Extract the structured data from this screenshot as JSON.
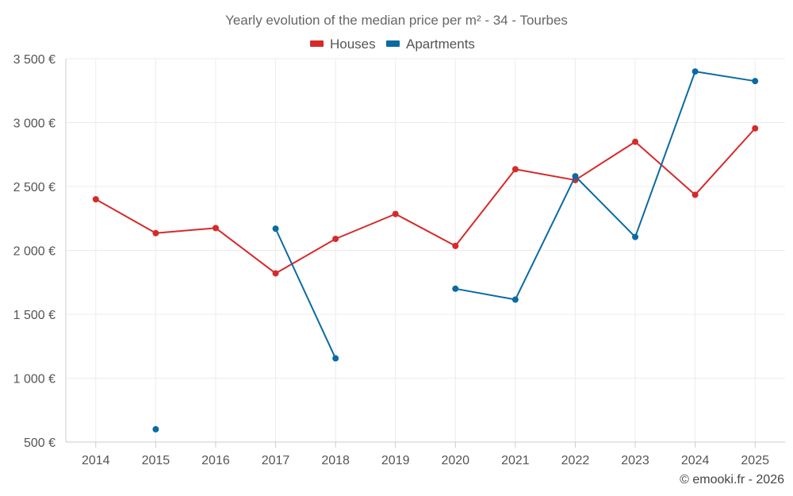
{
  "chart_data": {
    "type": "line",
    "title": "Yearly evolution of the median price per m² - 34 - Tourbes",
    "categories": [
      "2014",
      "2015",
      "2016",
      "2017",
      "2018",
      "2019",
      "2020",
      "2021",
      "2022",
      "2023",
      "2024",
      "2025"
    ],
    "ylim": [
      500,
      3500
    ],
    "yticks": [
      500,
      1000,
      1500,
      2000,
      2500,
      3000,
      3500
    ],
    "ytick_labels": [
      "500 €",
      "1 000 €",
      "1 500 €",
      "2 000 €",
      "2 500 €",
      "3 000 €",
      "3 500 €"
    ],
    "grid": true,
    "legend_position": "top-center",
    "series": [
      {
        "name": "Houses",
        "color": "#d62a2a",
        "values": [
          2400,
          2135,
          2175,
          1820,
          2090,
          2285,
          2035,
          2635,
          2550,
          2850,
          2435,
          2955
        ]
      },
      {
        "name": "Apartments",
        "color": "#0b6aa2",
        "values": [
          null,
          600,
          null,
          2170,
          1155,
          null,
          1700,
          1615,
          2580,
          2105,
          3400,
          3325
        ]
      }
    ],
    "credit": "© emooki.fr - 2026"
  }
}
